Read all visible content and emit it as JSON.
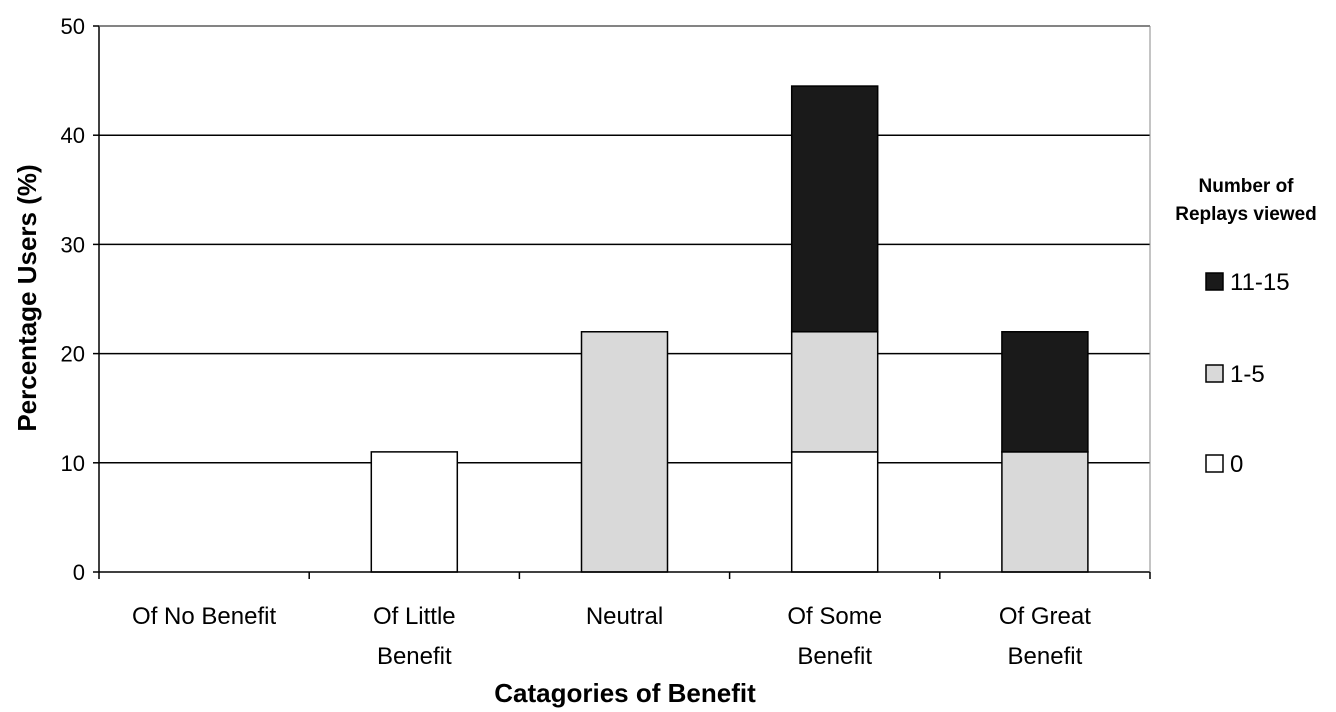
{
  "chart_data": {
    "type": "bar",
    "stacked": true,
    "categories": [
      [
        "Of No Benefit"
      ],
      [
        "Of Little",
        "Benefit"
      ],
      [
        "Neutral"
      ],
      [
        "Of Some",
        "Benefit"
      ],
      [
        "Of Great",
        "Benefit"
      ]
    ],
    "series": [
      {
        "name": "0",
        "color": "#ffffff",
        "values": [
          0,
          11,
          0,
          11,
          0
        ]
      },
      {
        "name": "1-5",
        "color": "#d9d9d9",
        "values": [
          0,
          0,
          22,
          11,
          11
        ]
      },
      {
        "name": "11-15",
        "color": "#1a1a1a",
        "values": [
          0,
          0,
          0,
          22.5,
          11
        ]
      }
    ],
    "xlabel": "Catagories of Benefit",
    "ylabel": "Percentage Users (%)",
    "ylim": [
      0,
      50
    ],
    "yticks": [
      0,
      10,
      20,
      30,
      40,
      50
    ],
    "grid": true,
    "legend": {
      "title": [
        "Number of",
        "Replays viewed"
      ],
      "placement": "right",
      "order": [
        "11-15",
        "1-5",
        "0"
      ]
    }
  }
}
